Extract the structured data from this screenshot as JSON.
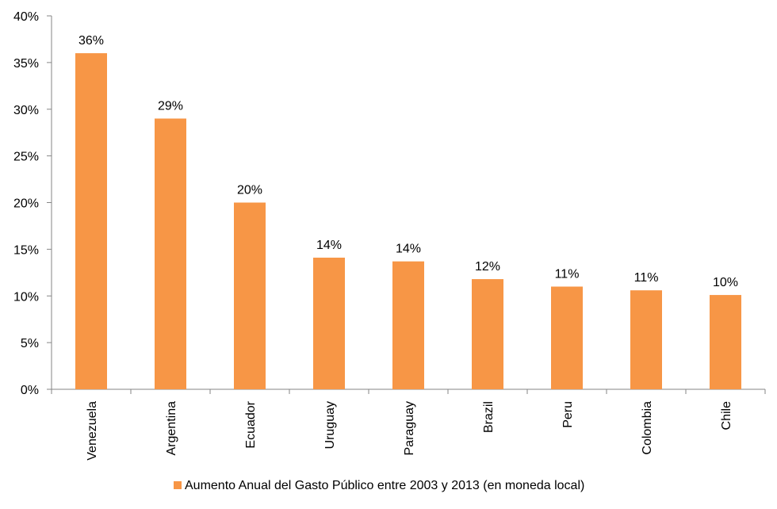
{
  "chart_data": {
    "type": "bar",
    "categories": [
      "Venezuela",
      "Argentina",
      "Ecuador",
      "Uruguay",
      "Paraguay",
      "Brazil",
      "Peru",
      "Colombia",
      "Chile"
    ],
    "series": [
      {
        "name": "Aumento Anual del Gasto Público entre 2003 y 2013 (en moneda local)",
        "values": [
          36,
          29,
          20,
          14.1,
          13.7,
          11.8,
          11,
          10.6,
          10.1
        ],
        "data_labels": [
          "36%",
          "29%",
          "20%",
          "14%",
          "14%",
          "12%",
          "11%",
          "11%",
          "10%"
        ],
        "color": "#F79646"
      }
    ],
    "ylim": [
      0,
      40
    ],
    "yticks": [
      0,
      5,
      10,
      15,
      20,
      25,
      30,
      35,
      40
    ],
    "ytick_labels": [
      "0%",
      "5%",
      "10%",
      "15%",
      "20%",
      "25%",
      "30%",
      "35%",
      "40%"
    ],
    "title": "",
    "xlabel": "",
    "ylabel": "",
    "grid": false,
    "legend_position": "bottom"
  }
}
